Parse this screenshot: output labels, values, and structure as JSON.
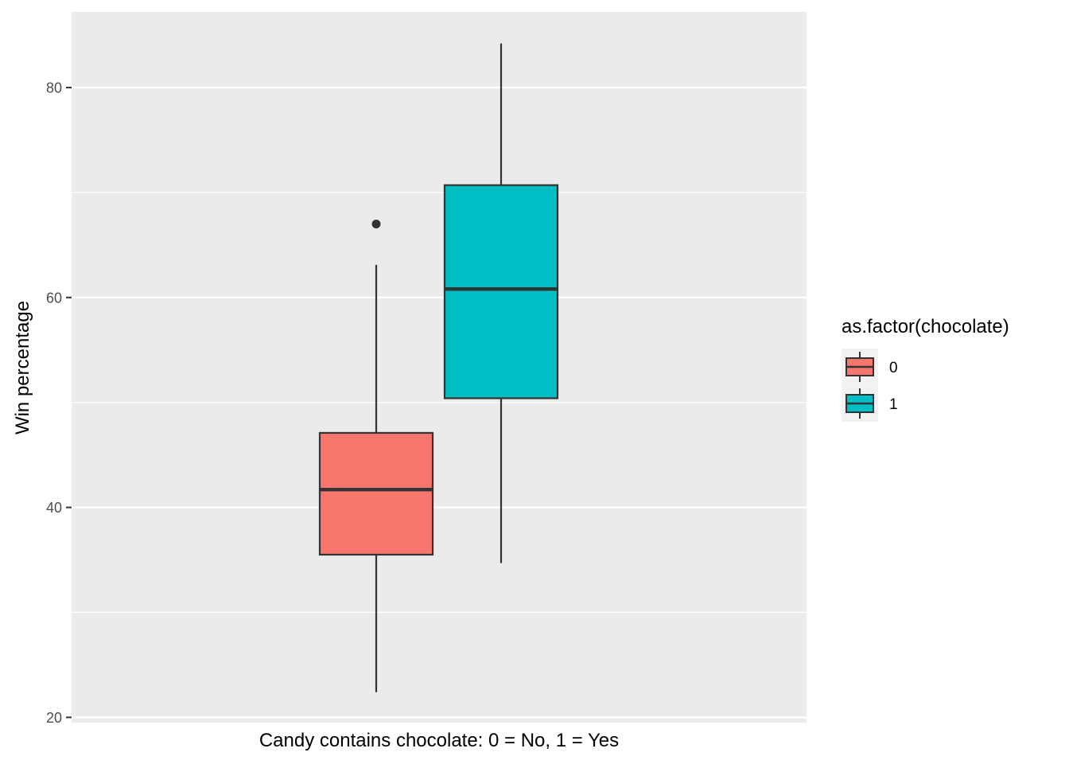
{
  "chart_data": {
    "type": "boxplot",
    "title": "",
    "xlabel": "Candy contains chocolate: 0 = No, 1 = Yes",
    "ylabel": "Win percentage",
    "ylim": [
      19.5,
      87.2
    ],
    "y_ticks": [
      20,
      40,
      60,
      80
    ],
    "y_tick_labels": [
      "20",
      "40",
      "60",
      "80"
    ],
    "y_minor_ticks": [
      30,
      50,
      70
    ],
    "grid": true,
    "legend": {
      "title": "as.factor(chocolate)",
      "position": "right",
      "entries": [
        "0",
        "1"
      ]
    },
    "series": [
      {
        "name": "0",
        "color": "#F8766D",
        "whisker_low": 22.4,
        "q1": 35.5,
        "median": 41.7,
        "q3": 47.1,
        "whisker_high": 63.1,
        "outliers": [
          67.0
        ]
      },
      {
        "name": "1",
        "color": "#00BFC4",
        "whisker_low": 34.7,
        "q1": 50.4,
        "median": 60.8,
        "q3": 70.7,
        "whisker_high": 84.2,
        "outliers": []
      }
    ],
    "colors": {
      "panel_bg": "#EBEBEB",
      "grid": "#FFFFFF",
      "outline": "#333333"
    }
  }
}
